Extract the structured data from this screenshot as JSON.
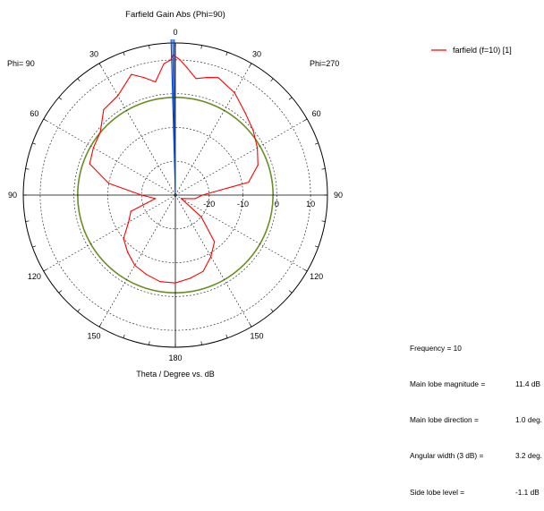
{
  "chart_data": {
    "type": "polar",
    "title": "Farfield Gain Abs (Phi=90)",
    "xlabel": "Theta / Degree vs. dB",
    "phi_left_label": "Phi= 90",
    "phi_right_label": "Phi=270",
    "theta_tick_labels": [
      "0",
      "30",
      "60",
      "90",
      "120",
      "150",
      "180"
    ],
    "radial_tick_labels": [
      "-20",
      "-10",
      "0",
      "10"
    ],
    "radial_range_db": [
      -30,
      15
    ],
    "grid": true,
    "legend_position": "top-right",
    "series": [
      {
        "name": "farfield (f=10) [1]",
        "color": "#ff0000",
        "theta_deg": [
          -180,
          -170,
          -160,
          -150,
          -140,
          -130,
          -120,
          -110,
          -100,
          -90,
          -80,
          -70,
          -60,
          -50,
          -40,
          -30,
          -20,
          -15,
          -10,
          -5,
          -2,
          0,
          1,
          2,
          5,
          10,
          15,
          20,
          30,
          40,
          50,
          60,
          70,
          80,
          90,
          100,
          110,
          120,
          130,
          140,
          150,
          160,
          170,
          180
        ],
        "gain_db": [
          -4,
          -5,
          -6,
          -9,
          -12,
          -20,
          -28,
          -27,
          -24,
          -22,
          -8,
          -4,
          -2,
          0,
          2,
          5,
          7,
          6,
          5,
          8,
          10,
          11,
          11.4,
          10,
          9,
          4,
          6,
          8,
          4,
          3,
          -1,
          -2,
          -3,
          -10,
          -20,
          -24,
          -16,
          -14,
          -10,
          -8,
          -6,
          -5,
          -4,
          -4
        ]
      }
    ],
    "main_beam_marker": {
      "color": "#0044cc",
      "theta_deg": 1.0
    },
    "reference_circle_db": -1.1,
    "reference_circle_color": "#6b8e23"
  },
  "info": [
    {
      "label": "Frequency = 10",
      "value": ""
    },
    {
      "label": "Main lobe magnitude =",
      "value": "11.4 dB"
    },
    {
      "label": "Main lobe direction =",
      "value": "1.0 deg."
    },
    {
      "label": "Angular width (3 dB) =",
      "value": "3.2 deg."
    },
    {
      "label": "Side lobe level =",
      "value": "-1.1 dB"
    }
  ]
}
